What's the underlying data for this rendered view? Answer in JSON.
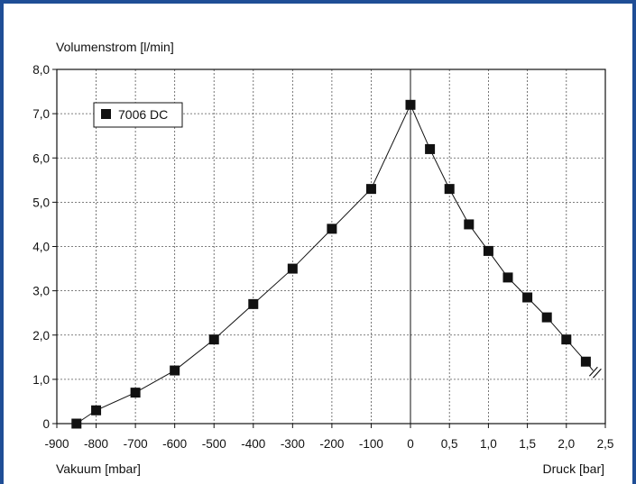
{
  "chart_data": {
    "type": "scatter",
    "ylabel": "Volumenstrom [l/min]",
    "xlabel_left": "Vakuum [mbar]",
    "xlabel_right": "Druck [bar]",
    "x_ticks": [
      "-900",
      "-800",
      "-700",
      "-600",
      "-500",
      "-400",
      "-300",
      "-200",
      "-100",
      "0",
      "0,5",
      "1,0",
      "1,5",
      "2,0",
      "2,5"
    ],
    "y_ticks": [
      "0",
      "1,0",
      "2,0",
      "3,0",
      "4,0",
      "5,0",
      "6,0",
      "7,0",
      "8,0"
    ],
    "ylim": [
      0,
      8
    ],
    "grid": true,
    "legend_position": "top-left",
    "series": [
      {
        "name": "7006 DC",
        "marker": "square",
        "connected": true,
        "vacuum_mbar": {
          "x": [
            -850,
            -800,
            -700,
            -600,
            -500,
            -400,
            -300,
            -200,
            -100,
            0
          ],
          "y": [
            0,
            0.3,
            0.7,
            1.2,
            1.9,
            2.7,
            3.5,
            4.4,
            5.3,
            7.2
          ]
        },
        "pressure_bar": {
          "x": [
            0,
            0.25,
            0.5,
            0.75,
            1.0,
            1.25,
            1.5,
            1.75,
            2.0,
            2.25
          ],
          "y": [
            7.2,
            6.2,
            5.3,
            4.5,
            3.9,
            3.3,
            2.85,
            2.4,
            1.9,
            1.4
          ]
        }
      }
    ],
    "annotations": [
      "curve continues beyond plot (break mark)"
    ]
  },
  "colors": {
    "frame": "#1f4e96",
    "grid": "#555555",
    "marker": "#111111"
  }
}
